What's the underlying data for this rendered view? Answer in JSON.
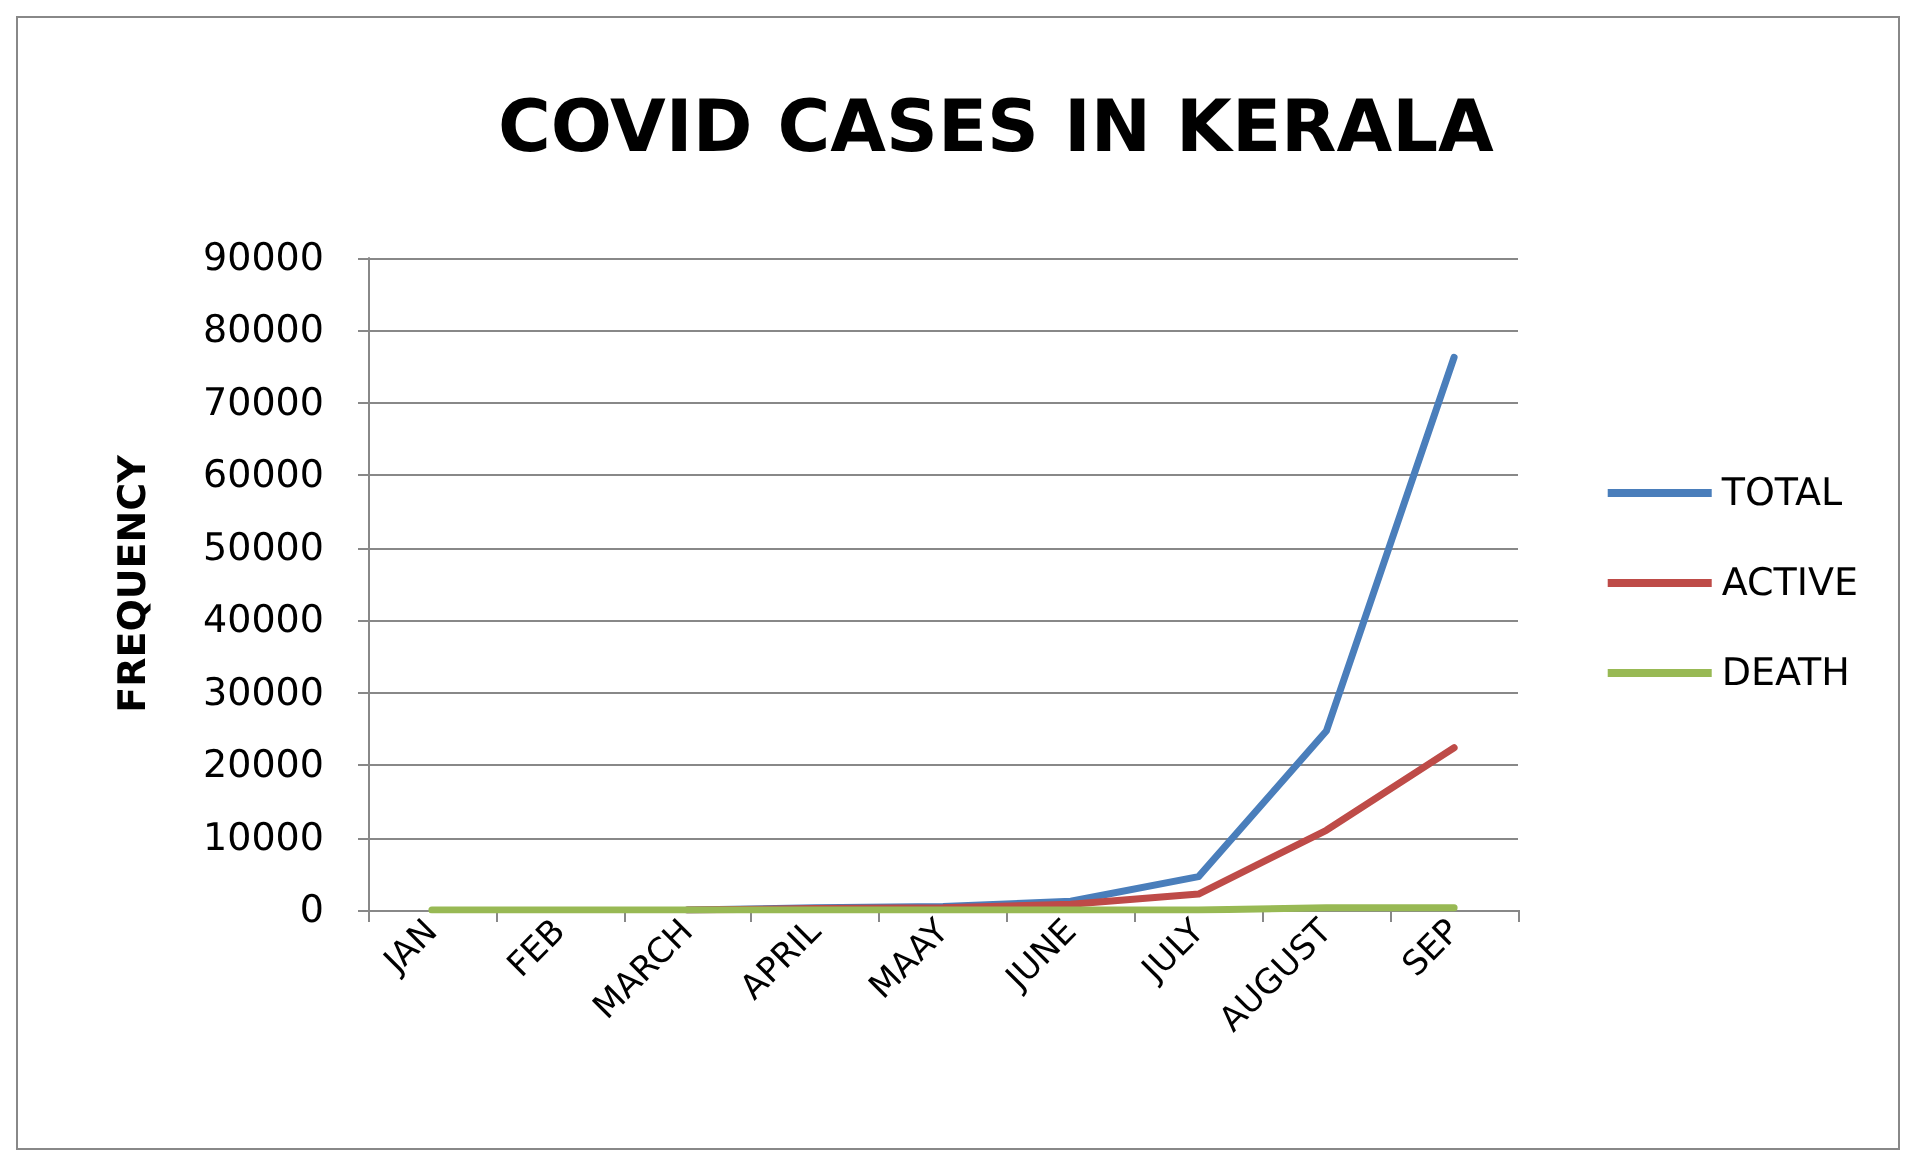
{
  "chart_data": {
    "type": "line",
    "title": "COVID CASES IN KERALA",
    "ylabel": "FREQUENCY",
    "categories": [
      "JAN",
      "FEB",
      "MARCH",
      "APRIL",
      "MAAY",
      "JUNE",
      "JULY",
      "AUGUST",
      "SEP"
    ],
    "series": [
      {
        "name": "TOTAL",
        "color": "#4a7ebb",
        "values": [
          null,
          null,
          0,
          300,
          500,
          1200,
          4600,
          24700,
          76300
        ]
      },
      {
        "name": "ACTIVE",
        "color": "#be4b48",
        "values": [
          null,
          null,
          0,
          200,
          300,
          800,
          2200,
          11000,
          22400
        ]
      },
      {
        "name": "DEATH",
        "color": "#98b954",
        "values": [
          0,
          0,
          0,
          0,
          0,
          0,
          0,
          300,
          300
        ]
      }
    ],
    "ylim": [
      0,
      90000
    ],
    "yticks": [
      0,
      10000,
      20000,
      30000,
      40000,
      50000,
      60000,
      70000,
      80000,
      90000
    ],
    "grid": "y",
    "legend": "right",
    "marker": "none"
  }
}
